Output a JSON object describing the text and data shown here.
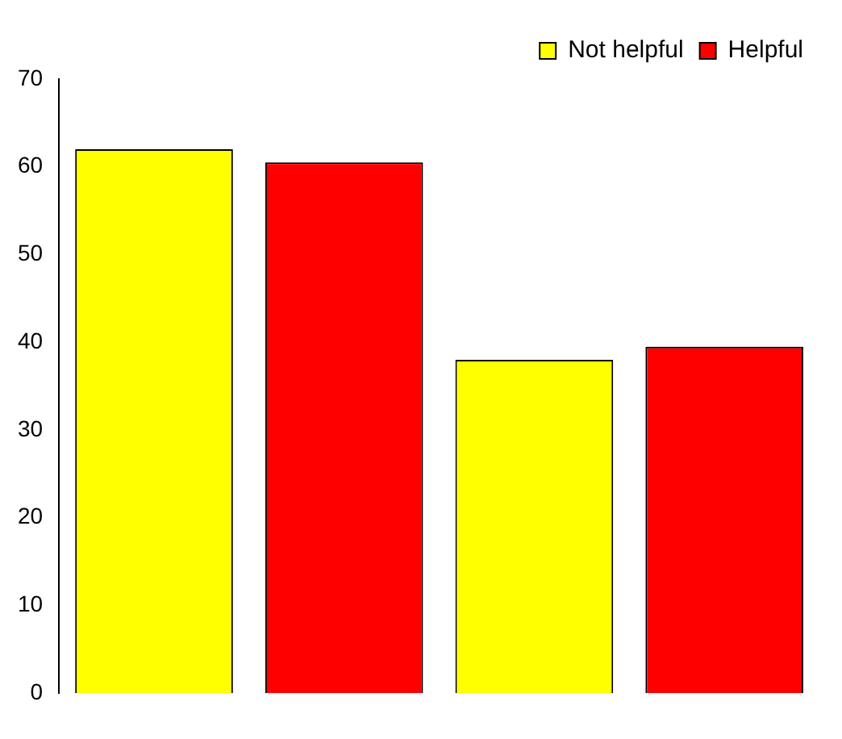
{
  "chart_data": {
    "type": "bar",
    "categories": [
      null,
      null
    ],
    "series": [
      {
        "name": "Not helpful",
        "color": "#ffff00",
        "values": [
          62,
          38
        ]
      },
      {
        "name": "Helpful",
        "color": "#ff0000",
        "values": [
          60.5,
          39.5
        ]
      }
    ],
    "ylim": [
      0,
      70
    ],
    "yticks": [
      0,
      10,
      20,
      30,
      40,
      50,
      60,
      70
    ],
    "grid": false,
    "legend": "top right"
  }
}
